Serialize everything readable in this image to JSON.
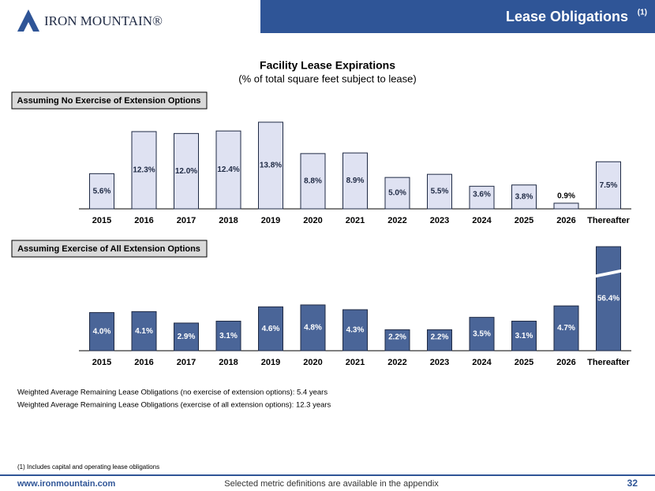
{
  "header": {
    "logo": "IRON MOUNTAIN®",
    "title": "Lease Obligations",
    "title_note": "(1)"
  },
  "section": {
    "title": "Facility Lease Expirations",
    "subtitle": "(% of total square feet subject to lease)"
  },
  "chart_data": [
    {
      "type": "bar",
      "title": "Assuming No Exercise of Extension Options",
      "categories": [
        "2015",
        "2016",
        "2017",
        "2018",
        "2019",
        "2020",
        "2021",
        "2022",
        "2023",
        "2024",
        "2025",
        "2026",
        "Thereafter"
      ],
      "values": [
        5.6,
        12.3,
        12.0,
        12.4,
        13.8,
        8.8,
        8.9,
        5.0,
        5.5,
        3.6,
        3.8,
        0.9,
        7.5
      ],
      "value_labels": [
        "5.6%",
        "12.3%",
        "12.0%",
        "12.4%",
        "13.8%",
        "8.8%",
        "8.9%",
        "5.0%",
        "5.5%",
        "3.6%",
        "3.8%",
        "0.9%",
        "7.5%"
      ],
      "color": "#dfe2f2",
      "label_color": "#1f2a44"
    },
    {
      "type": "bar",
      "title": "Assuming Exercise of All Extension Options",
      "categories": [
        "2015",
        "2016",
        "2017",
        "2018",
        "2019",
        "2020",
        "2021",
        "2022",
        "2023",
        "2024",
        "2025",
        "2026",
        "Thereafter"
      ],
      "values": [
        4.0,
        4.1,
        2.9,
        3.1,
        4.6,
        4.8,
        4.3,
        2.2,
        2.2,
        3.5,
        3.1,
        4.7,
        56.4
      ],
      "value_labels": [
        "4.0%",
        "4.1%",
        "2.9%",
        "3.1%",
        "4.6%",
        "4.8%",
        "4.3%",
        "2.2%",
        "2.2%",
        "3.5%",
        "3.1%",
        "4.7%",
        "56.4%"
      ],
      "color": "#4a6598",
      "label_color": "#ffffff"
    }
  ],
  "notes": [
    "Weighted Average Remaining Lease Obligations (no exercise of extension options):   5.4 years",
    "Weighted Average Remaining Lease Obligations (exercise of all extension options):   12.3 years"
  ],
  "footnote": "(1) Includes capital and operating lease obligations",
  "footer": {
    "url": "www.ironmountain.com",
    "text": "Selected metric definitions are available in the appendix",
    "page": "32"
  }
}
